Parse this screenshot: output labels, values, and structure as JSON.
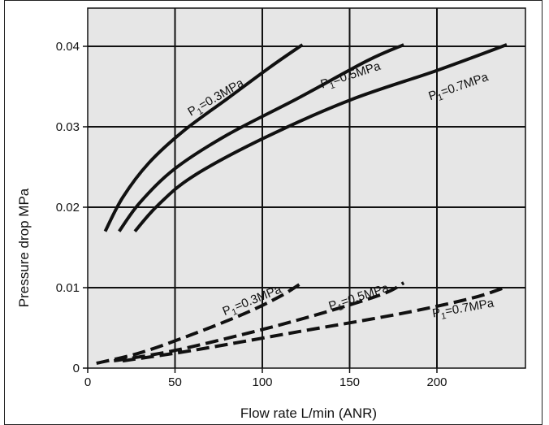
{
  "chart_data": {
    "type": "line",
    "xlabel": "Flow rate L/min (ANR)",
    "ylabel": "Pressure drop MPa",
    "xlim": [
      0,
      250
    ],
    "ylim": [
      0,
      0.043
    ],
    "x_ticks": [
      0,
      50,
      100,
      150,
      200
    ],
    "x_tick_labels": [
      "0",
      "50",
      "100",
      "150",
      "200"
    ],
    "y_ticks": [
      0,
      0.01,
      0.02,
      0.03,
      0.04
    ],
    "y_tick_labels": [
      "0",
      "0.01",
      "0.02",
      "0.03",
      "0.04"
    ],
    "grid": true,
    "background_color": "#e6e6e6",
    "line_color": "#111111",
    "series": [
      {
        "name": "P1=0.3MPa",
        "style": "solid",
        "x": [
          10,
          20,
          35,
          55,
          80,
          105,
          123
        ],
        "y": [
          0.017,
          0.0212,
          0.0255,
          0.0295,
          0.0335,
          0.0375,
          0.0402
        ]
      },
      {
        "name": "P1=0.5MPa",
        "style": "solid",
        "x": [
          18,
          30,
          50,
          80,
          120,
          160,
          181
        ],
        "y": [
          0.017,
          0.0206,
          0.0248,
          0.029,
          0.0335,
          0.0382,
          0.0402
        ]
      },
      {
        "name": "P1=0.7MPa",
        "style": "solid",
        "x": [
          27,
          40,
          60,
          100,
          150,
          200,
          240
        ],
        "y": [
          0.017,
          0.0202,
          0.0238,
          0.0285,
          0.0333,
          0.037,
          0.0402
        ]
      },
      {
        "name": "P1=0.3MPa",
        "style": "dashed",
        "x": [
          5,
          30,
          60,
          90,
          110,
          122
        ],
        "y": [
          0.0006,
          0.0019,
          0.0042,
          0.0068,
          0.0089,
          0.0105
        ]
      },
      {
        "name": "P1=0.5MPa",
        "style": "dashed",
        "x": [
          15,
          50,
          100,
          140,
          170,
          181
        ],
        "y": [
          0.0009,
          0.0022,
          0.0048,
          0.0072,
          0.0093,
          0.0106
        ]
      },
      {
        "name": "P1=0.7MPa",
        "style": "dashed",
        "x": [
          20,
          60,
          120,
          180,
          220,
          240
        ],
        "y": [
          0.0009,
          0.0022,
          0.0045,
          0.0068,
          0.0087,
          0.0101
        ]
      }
    ]
  }
}
